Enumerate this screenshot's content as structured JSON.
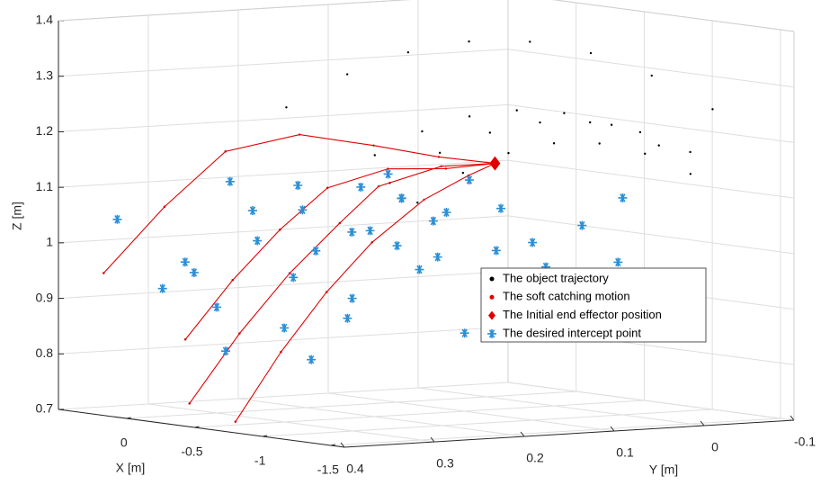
{
  "chart_data": {
    "type": "scatter3d",
    "xlabel": "X [m]",
    "ylabel": "Y [m]",
    "zlabel": "Z [m]",
    "xlim": [
      -1.6,
      0.5
    ],
    "ylim": [
      -0.1,
      0.4
    ],
    "zlim": [
      0.7,
      1.4
    ],
    "xticks": [
      -1.5,
      -1,
      -0.5,
      0
    ],
    "yticks": [
      -0.1,
      0,
      0.1,
      0.2,
      0.3,
      0.4
    ],
    "zticks": [
      0.7,
      0.8,
      0.9,
      1,
      1.1,
      1.2,
      1.3,
      1.4
    ],
    "grid": true,
    "legend": "lower right",
    "series": [
      {
        "name": "The object trajectory",
        "color": "#000000",
        "marker": "dot",
        "line": false,
        "x": [
          [
            0.3,
            0.15,
            0.0,
            -0.15,
            -0.3,
            -0.45,
            -0.6,
            -0.75,
            -0.9,
            -1.05,
            -1.2
          ],
          [
            0,
            -0.13,
            -0.26,
            -0.39,
            -0.52,
            -0.65,
            -0.78,
            -0.91,
            -1.04,
            -1.17,
            -1.3
          ],
          [
            -0.3,
            -0.41,
            -0.52,
            -0.63,
            -0.74,
            -0.85,
            -0.96,
            -1.07,
            -1.18,
            -1.29,
            -1.4
          ],
          [
            -0.8,
            -0.87,
            -0.94,
            -1.01,
            -1.08,
            -1.15,
            -1.22,
            -1.29,
            -1.36,
            -1.43,
            -1.5
          ]
        ],
        "y": [
          [
            0.38,
            0.335,
            0.29,
            0.245,
            0.2,
            0.155,
            0.11,
            0.065,
            0.02,
            -0.025,
            -0.07
          ],
          [
            0.33,
            0.294,
            0.258,
            0.222,
            0.186,
            0.15,
            0.114,
            0.078,
            0.042,
            0.006,
            -0.03
          ],
          [
            0.38,
            0.344,
            0.308,
            0.272,
            0.236,
            0.2,
            0.164,
            0.128,
            0.092,
            0.056,
            0.02
          ],
          [
            0.4,
            0.36,
            0.32,
            0.28,
            0.24,
            0.2,
            0.16,
            0.12,
            0.08,
            0.04,
            0.0
          ]
        ],
        "z": [
          [
            0.95,
            1.07,
            1.17,
            1.25,
            1.31,
            1.35,
            1.37,
            1.37,
            1.35,
            1.31,
            1.25
          ],
          [
            0.72,
            0.847,
            0.956,
            1.047,
            1.12,
            1.175,
            1.212,
            1.231,
            1.232,
            1.215,
            1.18
          ],
          [
            0.85,
            0.957,
            1.048,
            1.123,
            1.182,
            1.225,
            1.252,
            1.263,
            1.258,
            1.237,
            1.2
          ],
          [
            0.72,
            0.844,
            0.95,
            1.038,
            1.108,
            1.16,
            1.194,
            1.21,
            1.208,
            1.188,
            1.15
          ]
        ]
      },
      {
        "name": "The soft catching motion",
        "color": "#e00000",
        "marker": "dot",
        "line": true,
        "x": [
          [
            0.3,
            0.15,
            0.0,
            0.05,
            0.1,
            0.15,
            0.2
          ],
          [
            0,
            -0.13,
            -0.26,
            -0.39,
            -0.2,
            0.0,
            0.2
          ],
          [
            -0.3,
            -0.41,
            -0.52,
            -0.63,
            -0.4,
            -0.1,
            0.2
          ],
          [
            -0.8,
            -0.87,
            -0.94,
            -1.01,
            -0.6,
            -0.2,
            0.2
          ]
        ],
        "y": [
          [
            0.38,
            0.335,
            0.29,
            0.2,
            0.11,
            0.03,
            -0.04
          ],
          [
            0.33,
            0.294,
            0.258,
            0.222,
            0.15,
            0.05,
            -0.04
          ],
          [
            0.38,
            0.344,
            0.308,
            0.272,
            0.17,
            0.06,
            -0.04
          ],
          [
            0.4,
            0.36,
            0.32,
            0.28,
            0.16,
            0.05,
            -0.04
          ]
        ],
        "z": [
          [
            0.95,
            1.07,
            1.17,
            1.19,
            1.16,
            1.13,
            1.11
          ],
          [
            0.72,
            0.847,
            0.956,
            1.047,
            1.1,
            1.12,
            1.11
          ],
          [
            0.85,
            0.957,
            1.048,
            1.123,
            1.14,
            1.12,
            1.11
          ],
          [
            0.72,
            0.844,
            0.95,
            1.038,
            1.09,
            1.11,
            1.11
          ]
        ]
      },
      {
        "name": "The Initial end effector position",
        "color": "#e00000",
        "marker": "diamond",
        "line": false,
        "x": [
          [
            0.2
          ]
        ],
        "y": [
          [
            -0.04
          ]
        ],
        "z": [
          [
            1.11
          ]
        ]
      },
      {
        "name": "The desired intercept point",
        "color": "#2b8fd6",
        "marker": "star",
        "line": false,
        "x": [
          [
            0.2,
            -0.1,
            -0.3,
            -0.5,
            -0.2,
            -0.4,
            -0.6,
            -0.7,
            -0.3,
            -0.8,
            -0.5,
            -0.9,
            -0.1,
            -0.6,
            -1.0,
            -0.2,
            -0.7,
            -0.4,
            -1.1,
            -0.3,
            -0.5,
            -0.8,
            -0.6,
            -0.9,
            -0.2,
            -1.0,
            -0.4,
            -0.7,
            -0.1,
            -0.5,
            -0.3,
            -0.8,
            -0.6,
            -1.2,
            -0.9,
            -0.4,
            0.0,
            -1.1,
            -0.7,
            -0.5
          ]
        ],
        "y": [
          [
            0.38,
            0.35,
            0.3,
            0.28,
            0.33,
            0.25,
            0.22,
            0.2,
            0.27,
            0.18,
            0.15,
            0.12,
            0.3,
            0.24,
            0.1,
            0.32,
            0.16,
            0.2,
            0.06,
            0.26,
            0.23,
            0.14,
            0.19,
            0.08,
            0.29,
            0.05,
            0.21,
            0.13,
            0.34,
            0.17,
            0.24,
            0.11,
            0.2,
            0.03,
            0.07,
            0.27,
            0.36,
            0.02,
            0.09,
            0.12
          ]
        ],
        "z": [
          [
            1.05,
            0.98,
            1.02,
            1.08,
            0.9,
            1.0,
            1.04,
            1.1,
            0.86,
            1.06,
            0.96,
            1.08,
            1.12,
            0.92,
            1.02,
            0.82,
            0.99,
            1.11,
            1.05,
            0.95,
            0.88,
            1.13,
            1.01,
            0.94,
            1.07,
            0.89,
            1.03,
            0.85,
            0.96,
            1.09,
            0.8,
            1.0,
            1.14,
            1.1,
            0.97,
            1.12,
            0.93,
            0.98,
            0.91,
            1.06
          ]
        ]
      }
    ]
  }
}
